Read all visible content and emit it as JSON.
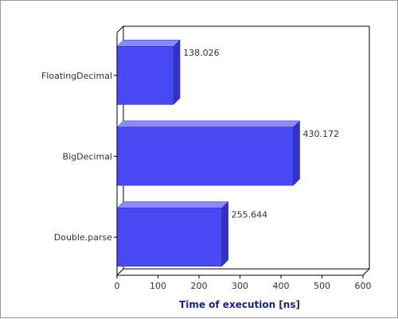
{
  "chart_data": {
    "type": "bar",
    "orientation": "horizontal",
    "rendering": "3d",
    "title": "",
    "xlabel": "Time of execution [ns]",
    "ylabel": "",
    "xlim": [
      0,
      600
    ],
    "x_ticks": [
      0,
      100,
      200,
      300,
      400,
      500,
      600
    ],
    "grid": false,
    "legend": "none",
    "categories": [
      "FloatingDecimal",
      "BigDecimal",
      "Double.parse"
    ],
    "values": [
      138.026,
      430.172,
      255.644
    ],
    "value_labels": [
      "138.026",
      "430.172",
      "255.644"
    ]
  },
  "colors": {
    "bar_front": "#4a4af5",
    "bar_top": "#8a8afb",
    "bar_side": "#3232c8",
    "axis_title": "#1a237e"
  }
}
